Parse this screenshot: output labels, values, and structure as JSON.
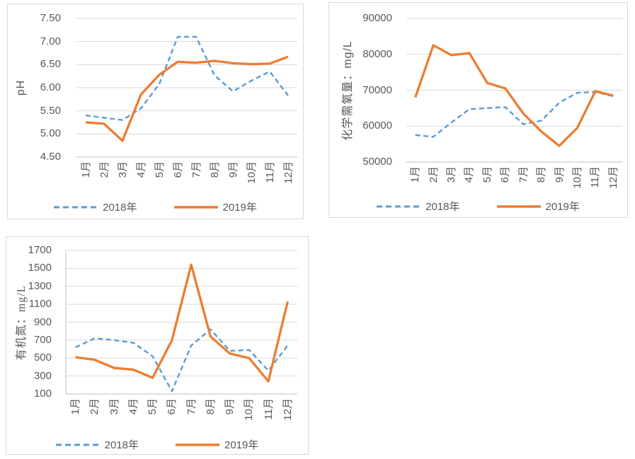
{
  "colors": {
    "series_2018": "#5B9BD5",
    "series_2019": "#ED7D31",
    "gridline": "#D9D9D9",
    "axis_line": "#BFBFBF",
    "text": "#595959",
    "chart_border": "#D8D8D8",
    "background": "#FFFFFF"
  },
  "legend_labels": {
    "s2018": "2018年",
    "s2019": "2019年"
  },
  "chart_data": [
    {
      "type": "line",
      "title": "",
      "y_axis_title": "pH",
      "xlabel": "",
      "y_min": 4.5,
      "y_max": 7.5,
      "y_step": 0.5,
      "y_tick_labels": [
        "7.50",
        "7.00",
        "6.50",
        "6.00",
        "5.50",
        "5.00",
        "4.50"
      ],
      "categories": [
        "1月",
        "2月",
        "3月",
        "4月",
        "5月",
        "6月",
        "7月",
        "8月",
        "9月",
        "10月",
        "11月",
        "12月"
      ],
      "grid": true,
      "legend_position": "bottom",
      "series": [
        {
          "name": "2018年",
          "color": "#5B9BD5",
          "dashed": true,
          "values": [
            5.4,
            5.35,
            5.3,
            5.55,
            6.08,
            7.1,
            7.1,
            6.27,
            5.92,
            6.15,
            6.35,
            5.83
          ]
        },
        {
          "name": "2019年",
          "color": "#ED7D31",
          "dashed": false,
          "values": [
            5.25,
            5.22,
            4.85,
            5.85,
            6.28,
            6.56,
            6.54,
            6.58,
            6.53,
            6.51,
            6.52,
            6.67
          ]
        }
      ]
    },
    {
      "type": "line",
      "title": "",
      "y_axis_title": "化学需氧量：mg/L",
      "xlabel": "",
      "y_min": 50000,
      "y_max": 90000,
      "y_step": 10000,
      "y_tick_labels": [
        "90000",
        "80000",
        "70000",
        "60000",
        "50000"
      ],
      "categories": [
        "1月",
        "2月",
        "3月",
        "4月",
        "5月",
        "6月",
        "7月",
        "8月",
        "9月",
        "10月",
        "11月",
        "12月"
      ],
      "grid": true,
      "legend_position": "bottom",
      "series": [
        {
          "name": "2018年",
          "color": "#5B9BD5",
          "dashed": true,
          "values": [
            57500,
            57000,
            61000,
            64700,
            65000,
            65300,
            60500,
            61500,
            66500,
            69300,
            69500,
            68300
          ]
        },
        {
          "name": "2019年",
          "color": "#ED7D31",
          "dashed": false,
          "values": [
            68000,
            82500,
            79800,
            80300,
            72000,
            70500,
            63500,
            58500,
            54500,
            59500,
            69700,
            68500
          ]
        }
      ]
    },
    {
      "type": "line",
      "title": "",
      "y_axis_title": "有机氮：mg/L",
      "xlabel": "",
      "y_min": 100,
      "y_max": 1700,
      "y_step": 200,
      "y_tick_labels": [
        "1700",
        "1500",
        "1300",
        "1100",
        "900",
        "700",
        "500",
        "300",
        "100"
      ],
      "categories": [
        "1月",
        "2月",
        "3月",
        "4月",
        "5月",
        "6月",
        "7月",
        "8月",
        "9月",
        "10月",
        "11月",
        "12月"
      ],
      "grid": true,
      "legend_position": "bottom",
      "series": [
        {
          "name": "2018年",
          "color": "#5B9BD5",
          "dashed": true,
          "values": [
            620,
            720,
            700,
            670,
            520,
            130,
            640,
            820,
            580,
            590,
            360,
            640
          ]
        },
        {
          "name": "2019年",
          "color": "#ED7D31",
          "dashed": false,
          "values": [
            510,
            480,
            390,
            370,
            280,
            700,
            1540,
            740,
            550,
            500,
            240,
            1130
          ]
        }
      ]
    }
  ]
}
